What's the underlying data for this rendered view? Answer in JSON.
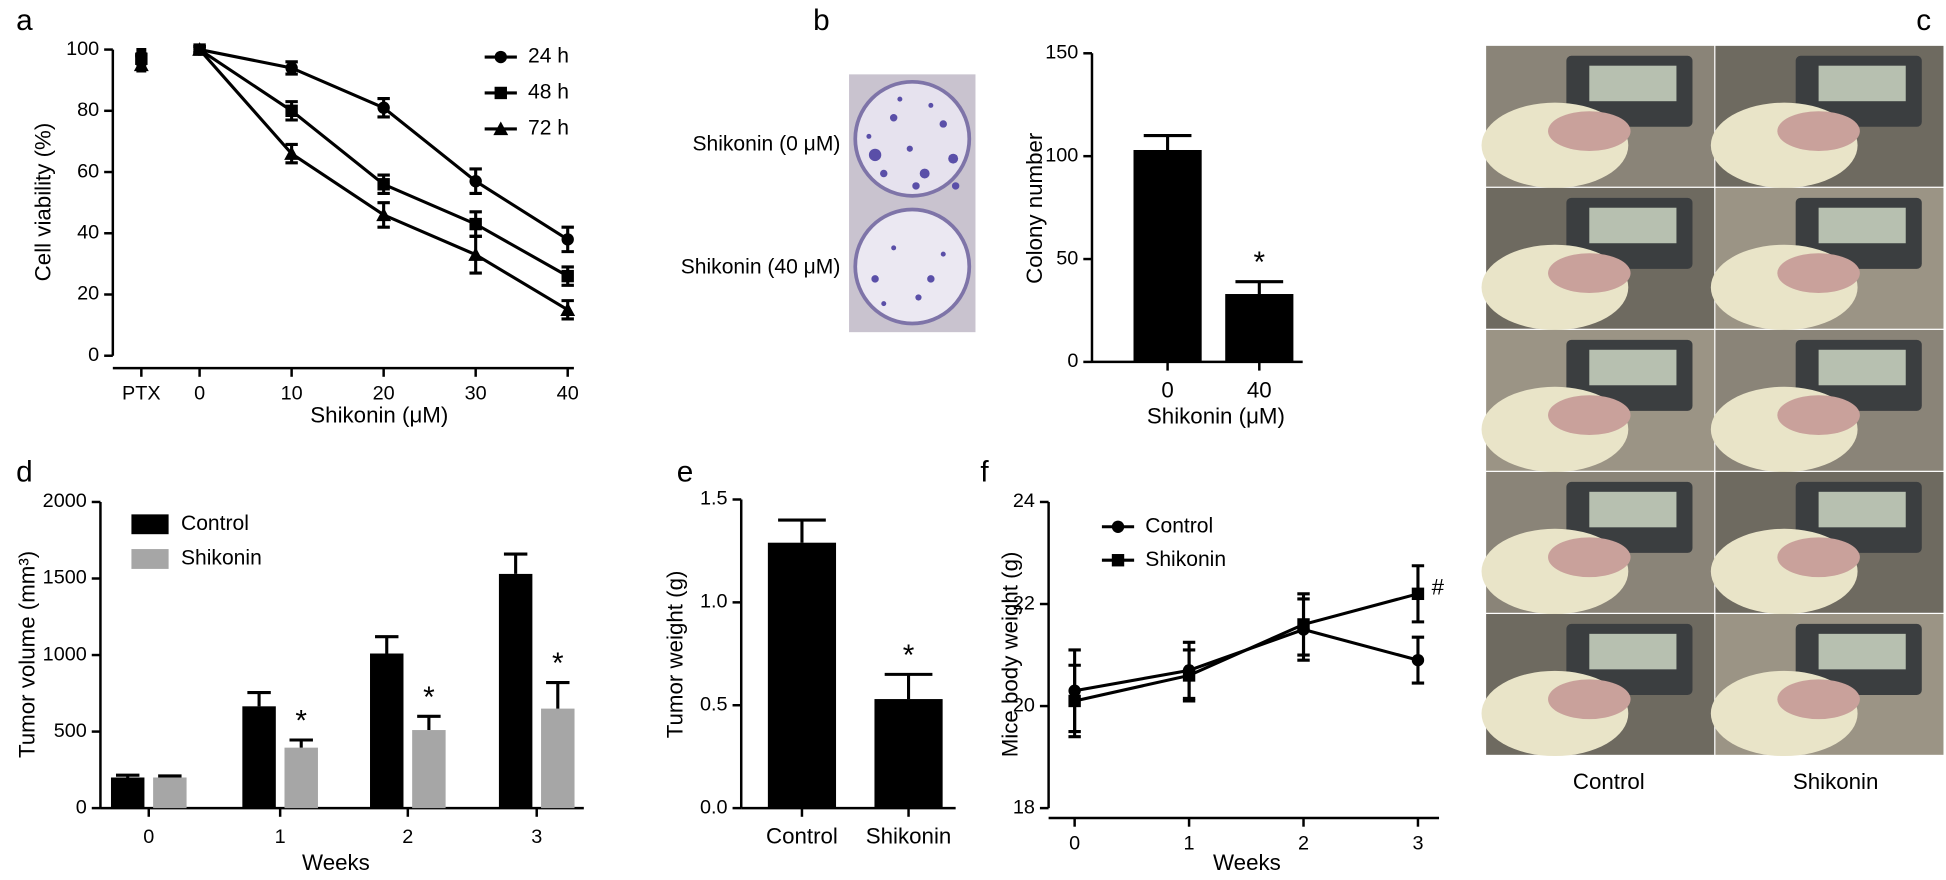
{
  "chart_data": [
    {
      "type": "line",
      "panel": "a",
      "x_label": "Shikonin (μM)",
      "y_label": "Cell viability (%)",
      "control_label": "PTX",
      "x": [
        0,
        10,
        20,
        30,
        40
      ],
      "xlim": [
        0,
        40
      ],
      "xticks": [
        0,
        10,
        20,
        30,
        40
      ],
      "ylim": [
        0,
        100
      ],
      "yticks": [
        0,
        20,
        40,
        60,
        80,
        100
      ],
      "series": [
        {
          "name": "24 h",
          "marker": "circle",
          "color": "#000000",
          "control_value": 98,
          "control_error": 2,
          "values": [
            100,
            94,
            81,
            57,
            38
          ],
          "errors": [
            1,
            2,
            3,
            4,
            4
          ]
        },
        {
          "name": "48 h",
          "marker": "square",
          "color": "#000000",
          "control_value": 97,
          "control_error": 2,
          "values": [
            100,
            80,
            56,
            43,
            26
          ],
          "errors": [
            1,
            3,
            3,
            4,
            3
          ]
        },
        {
          "name": "72 h",
          "marker": "triangle",
          "color": "#000000",
          "control_value": 95,
          "control_error": 2,
          "values": [
            100,
            66,
            46,
            33,
            15
          ],
          "errors": [
            1,
            3,
            4,
            6,
            3
          ]
        }
      ]
    },
    {
      "type": "bar",
      "panel": "b",
      "image_labels": [
        "Shikonin (0 μM)",
        "Shikonin (40 μM)"
      ],
      "x_label": "Shikonin (μM)",
      "y_label": "Colony number",
      "categories": [
        "0",
        "40"
      ],
      "values": [
        103,
        33
      ],
      "errors": [
        7,
        6
      ],
      "color": "#000000",
      "ylim": [
        0,
        150
      ],
      "yticks": [
        0,
        50,
        100,
        150
      ],
      "annotations": [
        "*"
      ]
    },
    {
      "type": "photo",
      "panel": "c",
      "categories": [
        "Control",
        "Shikonin"
      ]
    },
    {
      "type": "bar",
      "panel": "d",
      "x_label": "Weeks",
      "y_label": "Tumor volume (mm³)",
      "categories": [
        "0",
        "1",
        "2",
        "3"
      ],
      "ylim": [
        0,
        2000
      ],
      "yticks": [
        0,
        500,
        1000,
        1500,
        2000
      ],
      "series": [
        {
          "name": "Control",
          "color": "#000000",
          "values": [
            200,
            665,
            1010,
            1530
          ],
          "errors": [
            15,
            90,
            110,
            130
          ]
        },
        {
          "name": "Shikonin",
          "color": "#a6a6a6",
          "values": [
            200,
            395,
            510,
            650
          ],
          "errors": [
            10,
            50,
            90,
            170
          ]
        }
      ],
      "annotations": [
        "*",
        "*",
        "*"
      ]
    },
    {
      "type": "bar",
      "panel": "e",
      "y_label": "Tumor weight (g)",
      "categories": [
        "Control",
        "Shikonin"
      ],
      "values": [
        1.29,
        0.53
      ],
      "errors": [
        0.11,
        0.12
      ],
      "color": "#000000",
      "ylim": [
        0,
        1.5
      ],
      "yticks": [
        {
          "value": 0,
          "label": "0.0"
        },
        {
          "value": 0.5,
          "label": "0.5"
        },
        {
          "value": 1,
          "label": "1.0"
        },
        {
          "value": 1.5,
          "label": "1.5"
        }
      ],
      "annotations": [
        "*"
      ]
    },
    {
      "type": "line",
      "panel": "f",
      "x_label": "Weeks",
      "y_label": "Mice body weight (g)",
      "x": [
        0,
        1,
        2,
        3
      ],
      "xlim": [
        0,
        3
      ],
      "xticks": [
        0,
        1,
        2,
        3
      ],
      "ylim": [
        18,
        24
      ],
      "yticks": [
        18,
        20,
        22,
        24
      ],
      "series": [
        {
          "name": "Control",
          "marker": "circle",
          "color": "#000000",
          "values": [
            20.3,
            20.7,
            21.5,
            20.9
          ],
          "errors": [
            0.8,
            0.55,
            0.6,
            0.45
          ]
        },
        {
          "name": "Shikonin",
          "marker": "square",
          "color": "#000000",
          "values": [
            20.1,
            20.6,
            21.6,
            22.2
          ],
          "errors": [
            0.7,
            0.5,
            0.6,
            0.55
          ]
        }
      ],
      "annotations": [
        "#"
      ]
    }
  ]
}
